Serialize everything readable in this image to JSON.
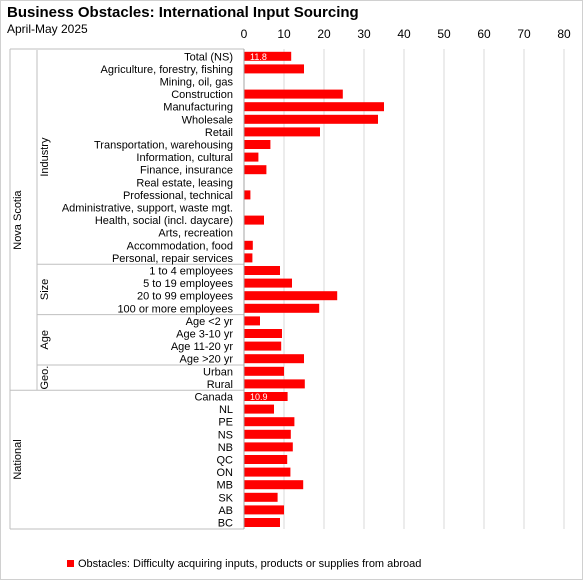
{
  "title": "Business Obstacles: International Input Sourcing",
  "subtitle": "April-May 2025",
  "colors": {
    "bar": "#ff0000",
    "grid": "#d9d9d9",
    "divider": "#bfbfbf"
  },
  "chart_data": {
    "type": "bar",
    "orientation": "horizontal",
    "xlim": [
      0,
      80
    ],
    "x_ticks": [
      "0",
      "10",
      "20",
      "30",
      "40",
      "50",
      "60",
      "70",
      "80"
    ],
    "grid": true,
    "legend": {
      "position": "bottom",
      "label": "Obstacles:  Difficulty acquiring inputs, products or supplies from abroad"
    },
    "groups": [
      {
        "name": "Nova Scotia",
        "sub": "Industry",
        "start": 0,
        "end": 16
      },
      {
        "name": "Nova Scotia",
        "sub": "Size",
        "start": 17,
        "end": 20
      },
      {
        "name": "Nova Scotia",
        "sub": "Age",
        "start": 21,
        "end": 24
      },
      {
        "name": "Nova Scotia",
        "sub": "Geo.",
        "start": 25,
        "end": 26
      },
      {
        "name": "National",
        "sub": "",
        "start": 27,
        "end": 37
      }
    ],
    "categories": [
      "Total (NS)",
      "Agriculture, forestry, fishing",
      "Mining, oil, gas",
      "Construction",
      "Manufacturing",
      "Wholesale",
      "Retail",
      "Transportation, warehousing",
      "Information, cultural",
      "Finance, insurance",
      "Real estate, leasing",
      "Professional, technical",
      "Administrative, support, waste mgt.",
      "Health, social (incl. daycare)",
      "Arts, recreation",
      "Accommodation, food",
      "Personal, repair services",
      "1 to 4 employees",
      "5 to 19 employees",
      "20 to 99 employees",
      "100 or more employees",
      "Age <2 yr",
      "Age 3-10 yr",
      "Age 11-20 yr",
      "Age >20 yr",
      "Urban",
      "Rural",
      "Canada",
      "NL",
      "PE",
      "NS",
      "NB",
      "QC",
      "ON",
      "MB",
      "SK",
      "AB",
      "BC"
    ],
    "values": [
      11.8,
      15.0,
      0,
      24.7,
      35.0,
      33.5,
      19.0,
      6.6,
      3.6,
      5.6,
      0,
      1.6,
      0,
      5.0,
      0,
      2.2,
      2.1,
      9.0,
      12.0,
      23.3,
      18.8,
      4.0,
      9.5,
      9.3,
      15.0,
      10.0,
      15.2,
      10.9,
      7.5,
      12.6,
      11.7,
      12.2,
      10.8,
      11.6,
      14.8,
      8.4,
      10.0,
      9.0
    ],
    "data_labels": [
      {
        "index": 0,
        "text": "11.8"
      },
      {
        "index": 27,
        "text": "10.9"
      }
    ]
  }
}
